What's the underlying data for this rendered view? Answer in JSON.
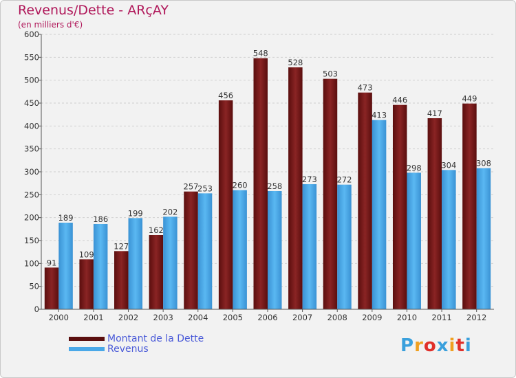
{
  "title": "Revenus/Dette - ARçAY",
  "subtitle": "(en milliers d'€)",
  "logo": {
    "text": "Proxiti",
    "letters": [
      "P",
      "r",
      "o",
      "x",
      "i",
      "t",
      "i"
    ],
    "colors": [
      "#3aa0dc",
      "#f0a020",
      "#e0302a",
      "#3aa0dc",
      "#f0a020",
      "#e0302a",
      "#3aa0dc"
    ]
  },
  "chart_data": {
    "type": "bar",
    "categories": [
      "2000",
      "2001",
      "2002",
      "2003",
      "2004",
      "2005",
      "2006",
      "2007",
      "2008",
      "2009",
      "2010",
      "2011",
      "2012"
    ],
    "series": [
      {
        "name": "Montant de la Dette",
        "color": "#7a1a1a",
        "values": [
          91,
          109,
          127,
          162,
          257,
          456,
          548,
          528,
          503,
          473,
          446,
          417,
          449
        ]
      },
      {
        "name": "Revenus",
        "color": "#4aa8e8",
        "values": [
          189,
          186,
          199,
          202,
          253,
          260,
          258,
          273,
          272,
          413,
          298,
          304,
          308
        ]
      }
    ],
    "ylim": [
      0,
      600
    ],
    "yticks": [
      0,
      50,
      100,
      150,
      200,
      250,
      300,
      350,
      400,
      450,
      500,
      550,
      600
    ],
    "grid": true,
    "legend": "bottom-left"
  }
}
